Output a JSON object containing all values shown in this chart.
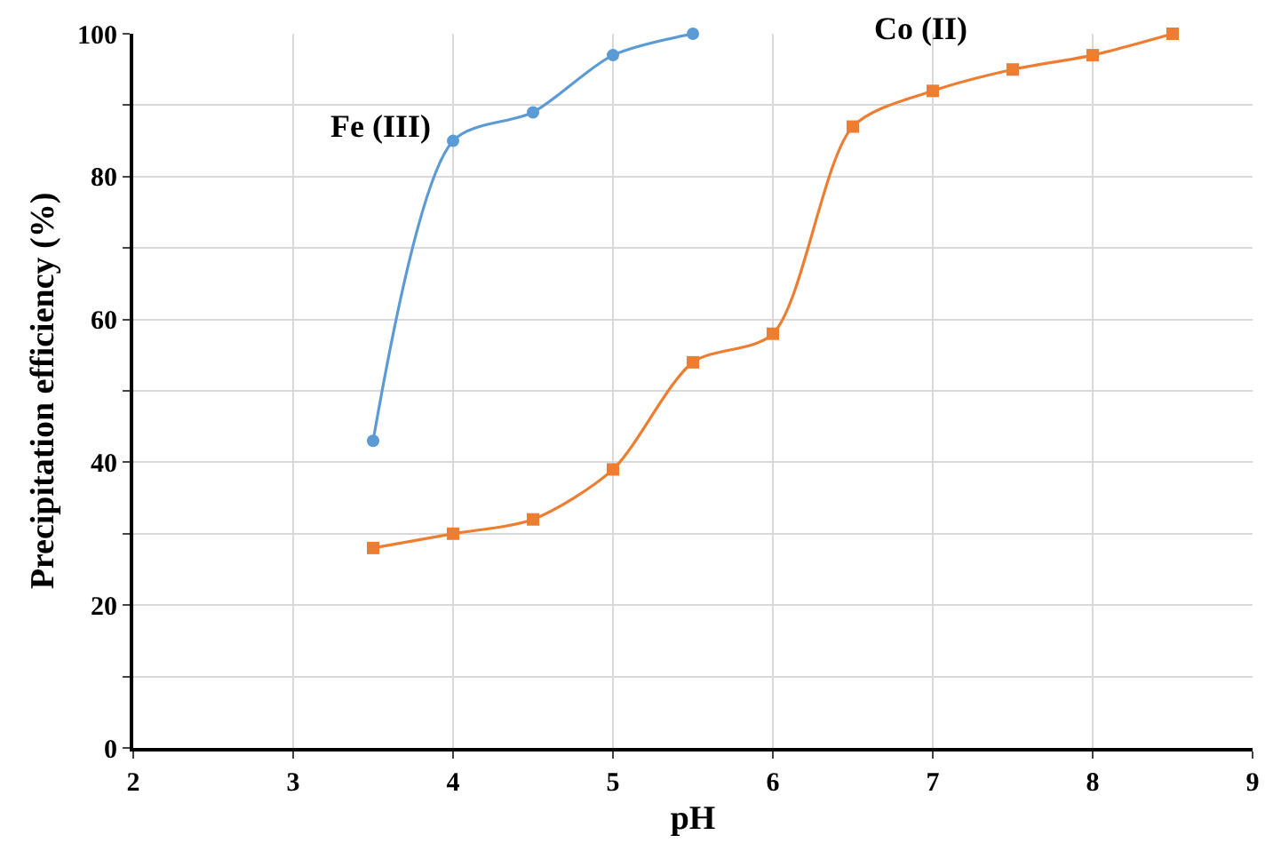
{
  "chart_data": {
    "type": "line",
    "xlabel": "pH",
    "ylabel": "Precipitation efficiency (%)",
    "xlim": [
      2,
      9
    ],
    "xticks": [
      2,
      3,
      4,
      5,
      6,
      7,
      8,
      9
    ],
    "ylim": [
      0,
      100
    ],
    "yticks": [
      0,
      {
        "value": 10,
        "label": null
      },
      20,
      {
        "value": 30,
        "label": null
      },
      40,
      {
        "value": 50,
        "label": null
      },
      60,
      {
        "value": 70,
        "label": null
      },
      80,
      {
        "value": 90,
        "label": null
      },
      100
    ],
    "grid": true,
    "legend": false,
    "series": [
      {
        "name": "Fe (III)",
        "color": "#5b9bd5",
        "marker": "circle",
        "x": [
          3.5,
          4,
          4.5,
          5,
          5.5
        ],
        "values": [
          43,
          85,
          89,
          97,
          100
        ]
      },
      {
        "name": "Co (II)",
        "color": "#ed7d31",
        "marker": "square",
        "x": [
          3.5,
          4,
          4.5,
          5,
          5.5,
          6,
          6.5,
          7,
          7.5,
          8,
          8.5
        ],
        "values": [
          28,
          30,
          32,
          39,
          54,
          58,
          87,
          92,
          95,
          97,
          100
        ]
      }
    ]
  }
}
